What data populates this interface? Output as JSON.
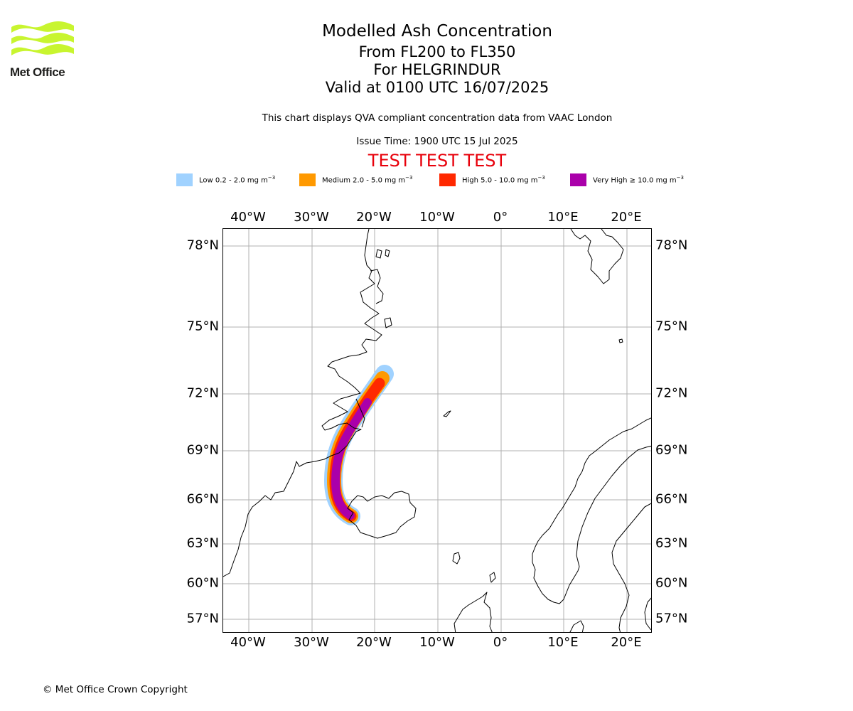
{
  "logo": {
    "text": "Met Office",
    "color": "#c8f52f"
  },
  "title": {
    "main": "Modelled Ash Concentration",
    "levels": "From FL200 to FL350",
    "volcano": "For HELGRINDUR",
    "valid": "Valid at 0100 UTC 16/07/2025"
  },
  "description": "This chart displays QVA compliant concentration data from VAAC London",
  "issue_time": "Issue Time: 1900 UTC 15 Jul 2025",
  "test_banner": "TEST TEST TEST",
  "legend": [
    {
      "label": "Low 0.2 - 2.0 mg m",
      "unit_exp": "−3",
      "color": "#a0d2ff"
    },
    {
      "label": "Medium 2.0 - 5.0 mg m",
      "unit_exp": "−3",
      "color": "#ff9900"
    },
    {
      "label": "High 5.0 - 10.0 mg m",
      "unit_exp": "−3",
      "color": "#ff2800"
    },
    {
      "label": "Very High  ≥  10.0 mg m",
      "unit_exp": "−3",
      "color": "#aa00aa"
    }
  ],
  "map": {
    "lon_ticks": [
      "40°W",
      "30°W",
      "20°W",
      "10°W",
      "0°",
      "10°E",
      "20°E"
    ],
    "lat_ticks": [
      "78°N",
      "75°N",
      "72°N",
      "69°N",
      "66°N",
      "63°N",
      "60°N",
      "57°N"
    ],
    "grid_color": "#b0b0b0"
  },
  "copyright": "© Met Office Crown Copyright"
}
